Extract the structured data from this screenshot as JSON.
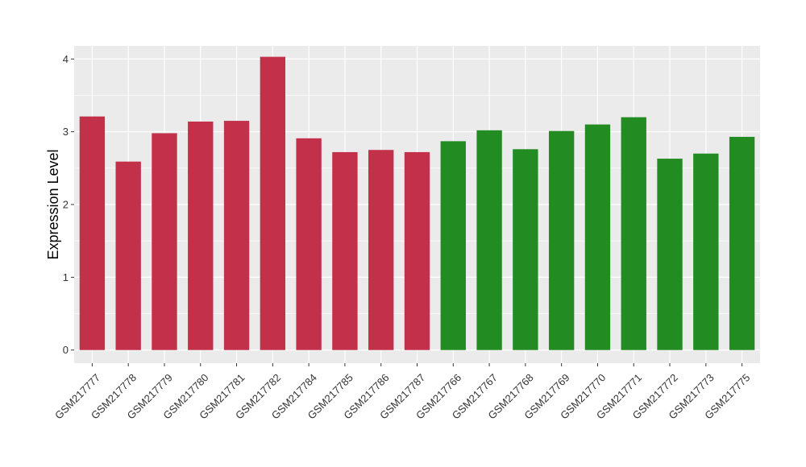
{
  "chart_data": {
    "type": "bar",
    "title": "",
    "xlabel": "",
    "ylabel": "Expression Level",
    "ylim": [
      -0.18,
      4.18
    ],
    "yticks": [
      0,
      1,
      2,
      3,
      4
    ],
    "grid": true,
    "categories": [
      "GSM217777",
      "GSM217778",
      "GSM217779",
      "GSM217780",
      "GSM217781",
      "GSM217782",
      "GSM217784",
      "GSM217785",
      "GSM217786",
      "GSM217787",
      "GSM217766",
      "GSM217767",
      "GSM217768",
      "GSM217769",
      "GSM217770",
      "GSM217771",
      "GSM217772",
      "GSM217773",
      "GSM217775"
    ],
    "values": [
      3.21,
      2.59,
      2.98,
      3.14,
      3.15,
      4.03,
      2.91,
      2.72,
      2.75,
      2.72,
      2.87,
      3.02,
      2.76,
      3.01,
      3.1,
      3.2,
      2.63,
      2.7,
      2.93
    ],
    "bar_colors": [
      "#C3304A",
      "#C3304A",
      "#C3304A",
      "#C3304A",
      "#C3304A",
      "#C3304A",
      "#C3304A",
      "#C3304A",
      "#C3304A",
      "#C3304A",
      "#228B22",
      "#228B22",
      "#228B22",
      "#228B22",
      "#228B22",
      "#228B22",
      "#228B22",
      "#228B22",
      "#228B22"
    ],
    "panel_background": "#EBEBEB",
    "grid_color": "#FFFFFF"
  }
}
